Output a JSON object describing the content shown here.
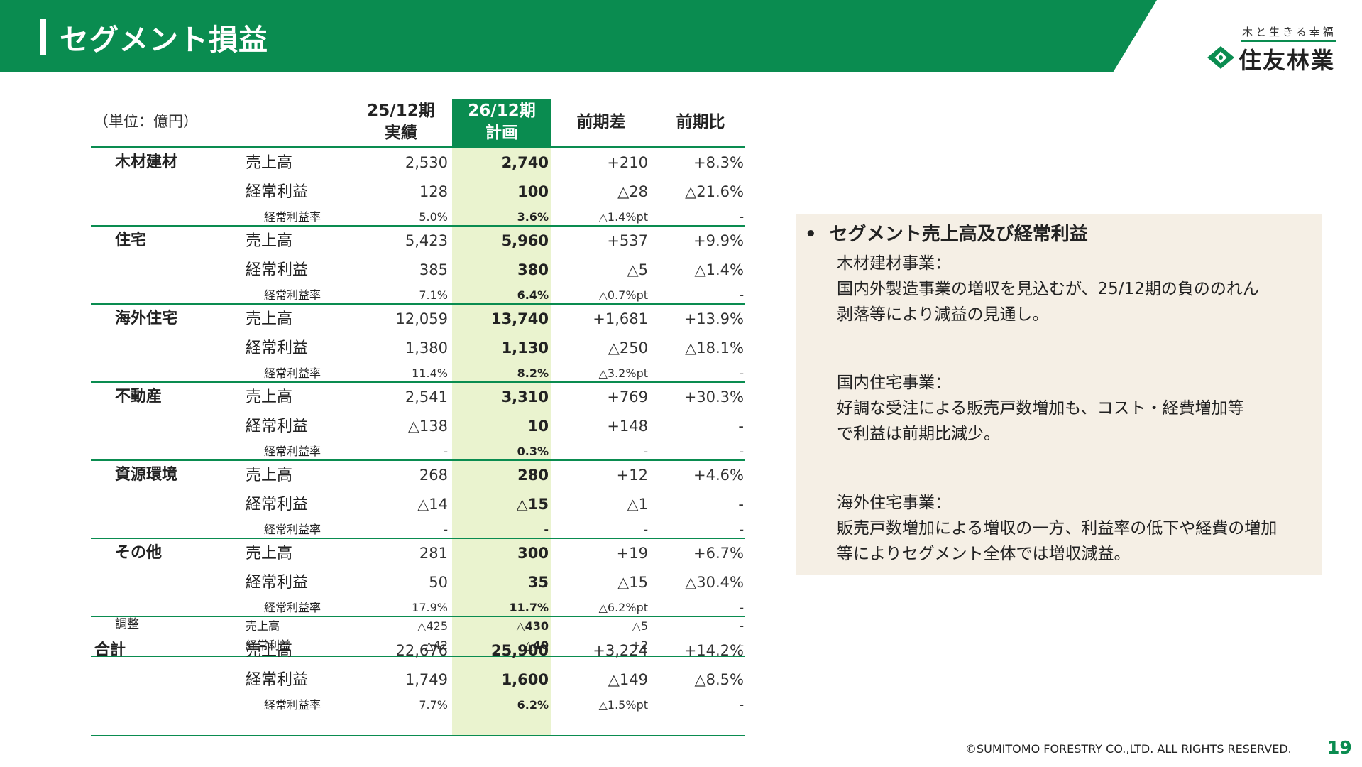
{
  "header": {
    "title": "セグメント損益",
    "logo_tagline": "木と生きる幸福",
    "logo_name": "住友林業"
  },
  "table": {
    "unit": "（単位：億円）",
    "columns": {
      "actual_top": "25/12期",
      "actual_bottom": "実績",
      "plan_top": "26/12期",
      "plan_bottom": "計画",
      "diff": "前期差",
      "ratio": "前期比"
    },
    "segments": [
      {
        "name": "木材建材",
        "rows": [
          {
            "label": "売上高",
            "actual": "2,530",
            "plan": "2,740",
            "diff": "+210",
            "ratio": "+8.3%"
          },
          {
            "label": "経常利益",
            "actual": "128",
            "plan": "100",
            "diff": "△28",
            "ratio": "△21.6%"
          },
          {
            "label": "経常利益率",
            "actual": "5.0%",
            "plan": "3.6%",
            "diff": "△1.4%pt",
            "ratio": "-"
          }
        ]
      },
      {
        "name": "住宅",
        "rows": [
          {
            "label": "売上高",
            "actual": "5,423",
            "plan": "5,960",
            "diff": "+537",
            "ratio": "+9.9%"
          },
          {
            "label": "経常利益",
            "actual": "385",
            "plan": "380",
            "diff": "△5",
            "ratio": "△1.4%"
          },
          {
            "label": "経常利益率",
            "actual": "7.1%",
            "plan": "6.4%",
            "diff": "△0.7%pt",
            "ratio": "-"
          }
        ]
      },
      {
        "name": "海外住宅",
        "rows": [
          {
            "label": "売上高",
            "actual": "12,059",
            "plan": "13,740",
            "diff": "+1,681",
            "ratio": "+13.9%"
          },
          {
            "label": "経常利益",
            "actual": "1,380",
            "plan": "1,130",
            "diff": "△250",
            "ratio": "△18.1%"
          },
          {
            "label": "経常利益率",
            "actual": "11.4%",
            "plan": "8.2%",
            "diff": "△3.2%pt",
            "ratio": "-"
          }
        ]
      },
      {
        "name": "不動産",
        "rows": [
          {
            "label": "売上高",
            "actual": "2,541",
            "plan": "3,310",
            "diff": "+769",
            "ratio": "+30.3%"
          },
          {
            "label": "経常利益",
            "actual": "△138",
            "plan": "10",
            "diff": "+148",
            "ratio": "-"
          },
          {
            "label": "経常利益率",
            "actual": "-",
            "plan": "0.3%",
            "diff": "-",
            "ratio": "-"
          }
        ]
      },
      {
        "name": "資源環境",
        "rows": [
          {
            "label": "売上高",
            "actual": "268",
            "plan": "280",
            "diff": "+12",
            "ratio": "+4.6%"
          },
          {
            "label": "経常利益",
            "actual": "△14",
            "plan": "△15",
            "diff": "△1",
            "ratio": "-"
          },
          {
            "label": "経常利益率",
            "actual": "-",
            "plan": "-",
            "diff": "-",
            "ratio": "-"
          }
        ]
      },
      {
        "name": "その他",
        "rows": [
          {
            "label": "売上高",
            "actual": "281",
            "plan": "300",
            "diff": "+19",
            "ratio": "+6.7%"
          },
          {
            "label": "経常利益",
            "actual": "50",
            "plan": "35",
            "diff": "△15",
            "ratio": "△30.4%"
          },
          {
            "label": "経常利益率",
            "actual": "17.9%",
            "plan": "11.7%",
            "diff": "△6.2%pt",
            "ratio": "-"
          }
        ]
      },
      {
        "name": "調整",
        "rows": [
          {
            "label": "売上高",
            "actual": "△425",
            "plan": "△430",
            "diff": "△5",
            "ratio": "-"
          },
          {
            "label": "経常利益",
            "actual": "△42",
            "plan": "△40",
            "diff": "+2",
            "ratio": "-"
          }
        ]
      },
      {
        "name": "合計",
        "rows": [
          {
            "label": "売上高",
            "actual": "22,676",
            "plan": "25,900",
            "diff": "+3,224",
            "ratio": "+14.2%"
          },
          {
            "label": "経常利益",
            "actual": "1,749",
            "plan": "1,600",
            "diff": "△149",
            "ratio": "△8.5%"
          },
          {
            "label": "経常利益率",
            "actual": "7.7%",
            "plan": "6.2%",
            "diff": "△1.5%pt",
            "ratio": "-"
          }
        ]
      }
    ]
  },
  "commentary": {
    "heading": "セグメント売上高及び経常利益",
    "paragraphs": [
      {
        "title": "木材建材事業：",
        "lines": [
          "国内外製造事業の増収を見込むが、25/12期の負ののれん",
          "剥落等により減益の見通し。"
        ]
      },
      {
        "title": "国内住宅事業：",
        "lines": [
          "好調な受注による販売戸数増加も、コスト・経費増加等",
          "で利益は前期比減少。"
        ]
      },
      {
        "title": "海外住宅事業：",
        "lines": [
          "販売戸数増加による増収の一方、利益率の低下や経費の増加",
          "等によりセグメント全体では増収減益。"
        ]
      }
    ]
  },
  "footer": {
    "copyright": "©SUMITOMO FORESTRY CO.,LTD. ALL RIGHTS RESERVED.",
    "page_number": "19"
  },
  "colors": {
    "brand_green": "#0a8c50",
    "plan_column_bg": "#eaf3cf",
    "commentary_bg": "#f5efe5"
  }
}
